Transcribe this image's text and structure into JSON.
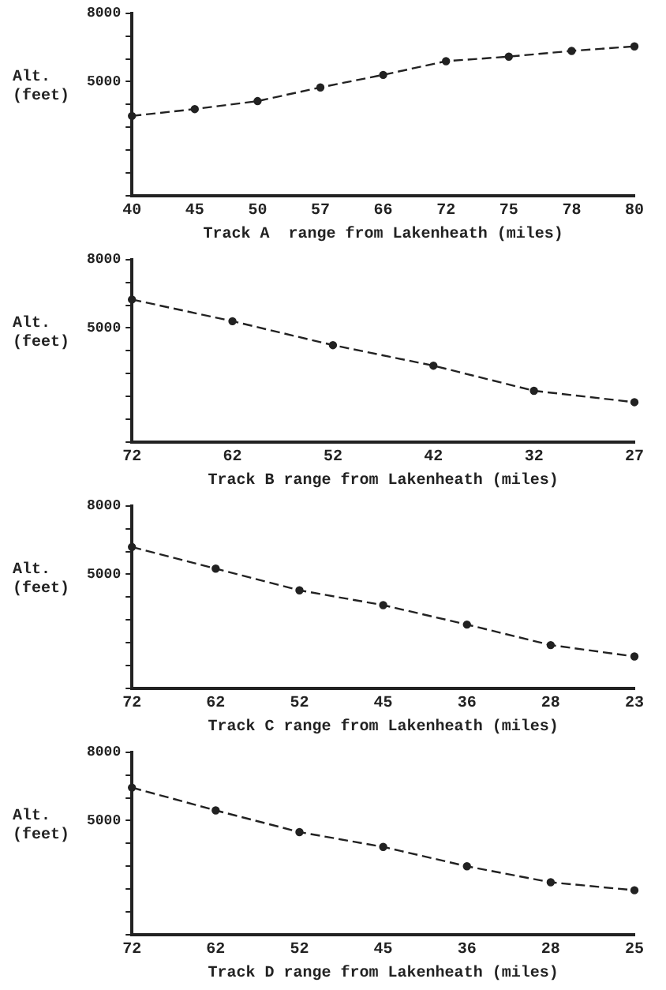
{
  "chart_data": [
    {
      "type": "line",
      "xlabel": "Track A  range from Lakenheath (miles)",
      "ylabel": "Alt.\n(feet)",
      "categories": [
        "40",
        "45",
        "50",
        "57",
        "66",
        "72",
        "75",
        "78",
        "80"
      ],
      "values": [
        3500,
        3800,
        4150,
        4750,
        5300,
        5900,
        6100,
        6350,
        6550
      ],
      "color": "#222222",
      "ylim": [
        0,
        8000
      ],
      "yticks": [
        {
          "value": 0,
          "label": null
        },
        {
          "value": 1000,
          "label": null
        },
        {
          "value": 2000,
          "label": null
        },
        {
          "value": 3000,
          "label": null
        },
        {
          "value": 4000,
          "label": null
        },
        {
          "value": 5000,
          "label": "5000"
        },
        {
          "value": 6000,
          "label": null
        },
        {
          "value": 7000,
          "label": null
        },
        {
          "value": 8000,
          "label": "8000"
        }
      ],
      "grid": false,
      "legend": false,
      "marker": "circle",
      "line_style": "dashed"
    },
    {
      "type": "line",
      "xlabel": "Track B range from Lakenheath (miles)",
      "ylabel": "Alt.\n(feet)",
      "categories": [
        "72",
        "62",
        "52",
        "42",
        "32",
        "27"
      ],
      "values": [
        6250,
        5300,
        4250,
        3350,
        2250,
        1750
      ],
      "color": "#222222",
      "ylim": [
        0,
        8000
      ],
      "yticks": [
        {
          "value": 0,
          "label": null
        },
        {
          "value": 1000,
          "label": null
        },
        {
          "value": 2000,
          "label": null
        },
        {
          "value": 3000,
          "label": null
        },
        {
          "value": 4000,
          "label": null
        },
        {
          "value": 5000,
          "label": "5000"
        },
        {
          "value": 6000,
          "label": null
        },
        {
          "value": 7000,
          "label": null
        },
        {
          "value": 8000,
          "label": "8000"
        }
      ],
      "grid": false,
      "legend": false,
      "marker": "circle",
      "line_style": "dashed"
    },
    {
      "type": "line",
      "xlabel": "Track C range from Lakenheath (miles)",
      "ylabel": "Alt.\n(feet)",
      "categories": [
        "72",
        "62",
        "52",
        "45",
        "36",
        "28",
        "23"
      ],
      "values": [
        6200,
        5250,
        4300,
        3650,
        2800,
        1900,
        1400
      ],
      "color": "#222222",
      "ylim": [
        0,
        8000
      ],
      "yticks": [
        {
          "value": 0,
          "label": null
        },
        {
          "value": 1000,
          "label": null
        },
        {
          "value": 2000,
          "label": null
        },
        {
          "value": 3000,
          "label": null
        },
        {
          "value": 4000,
          "label": null
        },
        {
          "value": 5000,
          "label": "5000"
        },
        {
          "value": 6000,
          "label": null
        },
        {
          "value": 7000,
          "label": null
        },
        {
          "value": 8000,
          "label": "8000"
        }
      ],
      "grid": false,
      "legend": false,
      "marker": "circle",
      "line_style": "dashed"
    },
    {
      "type": "line",
      "xlabel": "Track D range from Lakenheath (miles)",
      "ylabel": "Alt.\n(feet)",
      "categories": [
        "72",
        "62",
        "52",
        "45",
        "36",
        "28",
        "25"
      ],
      "values": [
        6450,
        5450,
        4500,
        3850,
        3000,
        2300,
        1950
      ],
      "color": "#222222",
      "ylim": [
        0,
        8000
      ],
      "yticks": [
        {
          "value": 0,
          "label": null
        },
        {
          "value": 1000,
          "label": null
        },
        {
          "value": 2000,
          "label": null
        },
        {
          "value": 3000,
          "label": null
        },
        {
          "value": 4000,
          "label": null
        },
        {
          "value": 5000,
          "label": "5000"
        },
        {
          "value": 6000,
          "label": null
        },
        {
          "value": 7000,
          "label": null
        },
        {
          "value": 8000,
          "label": "8000"
        }
      ],
      "grid": false,
      "legend": false,
      "marker": "circle",
      "line_style": "dashed"
    }
  ]
}
